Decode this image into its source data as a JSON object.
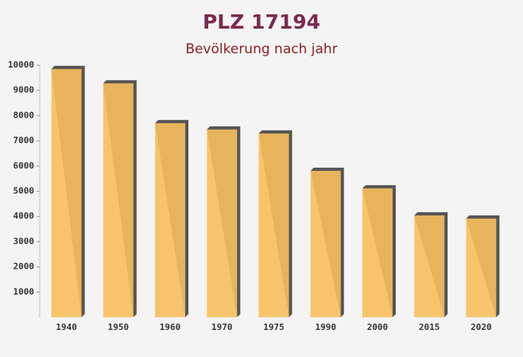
{
  "chart_data": {
    "type": "bar",
    "title": "PLZ 17194",
    "subtitle": "Bevölkerung nach jahr",
    "categories": [
      "1940",
      "1950",
      "1960",
      "1970",
      "1975",
      "1990",
      "2000",
      "2015",
      "2020"
    ],
    "values": [
      9850,
      9280,
      7700,
      7450,
      7290,
      5810,
      5115,
      4040,
      3915
    ],
    "color": "#f7bf5c",
    "ylim": [
      0,
      10000
    ],
    "yticks": [
      1000,
      2000,
      3000,
      4000,
      5000,
      6000,
      7000,
      8000,
      9000,
      10000
    ]
  }
}
